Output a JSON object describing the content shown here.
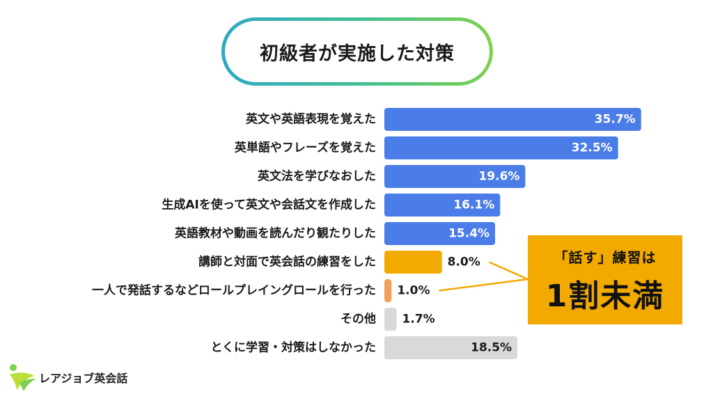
{
  "title": "初級者が実施した対策",
  "colors": {
    "primary": "#4a7de8",
    "highlight": "#f2a900",
    "secondary": "#f3a05a",
    "neutral": "#d9d9d9",
    "callout_line": "#f2a900"
  },
  "chart_data": {
    "type": "bar",
    "orientation": "horizontal",
    "title": "初級者が実施した対策",
    "unit": "%",
    "categories": [
      "英文や英語表現を覚えた",
      "英単語やフレーズを覚えた",
      "英文法を学びなおした",
      "生成AIを使って英文や会話文を作成した",
      "英語教材や動画を読んだり観たりした",
      "講師と対面で英会話の練習をした",
      "一人で発話するなどロールプレイングロールを行った",
      "その他",
      "とくに学習・対策はしなかった"
    ],
    "values": [
      35.7,
      32.5,
      19.6,
      16.1,
      15.4,
      8.0,
      1.0,
      1.7,
      18.5
    ],
    "value_labels": [
      "35.7%",
      "32.5%",
      "19.6%",
      "16.1%",
      "15.4%",
      "8.0%",
      "1.0%",
      "1.7%",
      "18.5%"
    ],
    "bar_colors": [
      "#4a7de8",
      "#4a7de8",
      "#4a7de8",
      "#4a7de8",
      "#4a7de8",
      "#f2a900",
      "#f3a05a",
      "#d9d9d9",
      "#d9d9d9"
    ],
    "xlim": [
      0,
      36
    ],
    "grid": false,
    "legend": "none"
  },
  "callout": {
    "top_text": "「話す」練習は",
    "main_text": "1割未満",
    "points_to": [
      5,
      6
    ]
  },
  "logo": {
    "text": "レアジョブ英会話"
  }
}
